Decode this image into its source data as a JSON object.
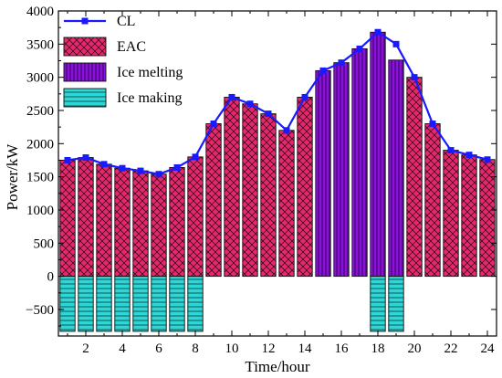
{
  "chart_data": {
    "type": "bar",
    "title": "",
    "xlabel": "Time/hour",
    "ylabel": "Power/kW",
    "xlim": [
      0.5,
      24.5
    ],
    "ylim": [
      -900,
      4000
    ],
    "x_ticks": [
      2,
      4,
      6,
      8,
      10,
      12,
      14,
      16,
      18,
      20,
      22,
      24
    ],
    "y_ticks": [
      -500,
      0,
      500,
      1000,
      1500,
      2000,
      2500,
      3000,
      3500,
      4000
    ],
    "y_tick_labels": [
      "−500",
      "0",
      "500",
      "1000",
      "1500",
      "2000",
      "2500",
      "3000",
      "3500",
      "4000"
    ],
    "hours": [
      1,
      2,
      3,
      4,
      5,
      6,
      7,
      8,
      9,
      10,
      11,
      12,
      13,
      14,
      15,
      16,
      17,
      18,
      19,
      20,
      21,
      22,
      23,
      24
    ],
    "legend_position": "top-left",
    "series": [
      {
        "name": "CL",
        "kind": "line",
        "color": "#1a1aff",
        "values": [
          1750,
          1790,
          1690,
          1630,
          1590,
          1540,
          1640,
          1800,
          2300,
          2700,
          2600,
          2450,
          2200,
          2700,
          3100,
          3220,
          3430,
          3680,
          3500,
          3000,
          2300,
          1900,
          1830,
          1760
        ]
      },
      {
        "name": "EAC",
        "kind": "bar",
        "color": "#e8286e",
        "values": [
          1750,
          1790,
          1690,
          1630,
          1590,
          1540,
          1640,
          1800,
          2300,
          2700,
          2600,
          2450,
          2200,
          2700,
          0,
          0,
          0,
          0,
          0,
          3000,
          2300,
          1900,
          1830,
          1760
        ]
      },
      {
        "name": "Ice melting",
        "kind": "bar",
        "color": "#8a12d8",
        "values": [
          0,
          0,
          0,
          0,
          0,
          0,
          0,
          0,
          0,
          0,
          0,
          0,
          0,
          0,
          3100,
          3220,
          3430,
          3680,
          3260,
          0,
          0,
          0,
          0,
          0
        ]
      },
      {
        "name": "Ice making",
        "kind": "bar",
        "color": "#2ed6d6",
        "values": [
          -830,
          -830,
          -830,
          -830,
          -830,
          -830,
          -830,
          -830,
          0,
          0,
          0,
          0,
          0,
          0,
          0,
          0,
          0,
          -830,
          -830,
          0,
          0,
          0,
          0,
          0
        ]
      }
    ]
  }
}
